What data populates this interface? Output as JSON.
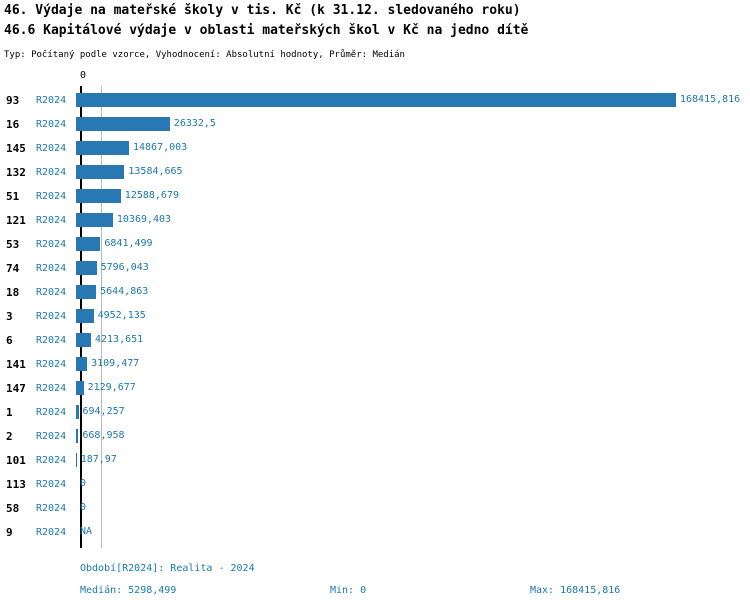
{
  "header": {
    "title": "46. Výdaje na mateřské školy v tis. Kč (k 31.12. sledovaného roku)",
    "subtitle": "46.6 Kapitálové výdaje v oblasti mateřských škol v Kč na jedno dítě",
    "meta": "Typ: Počítaný podle vzorce, Vyhodnocení: Absolutní hodnoty, Průměr: Medián"
  },
  "chart_data": {
    "type": "bar",
    "orientation": "horizontal",
    "x_tick_zero": "0",
    "xlim": [
      0,
      168415.816
    ],
    "median_value": 5298.499,
    "categories": [
      "93",
      "16",
      "145",
      "132",
      "51",
      "121",
      "53",
      "74",
      "18",
      "3",
      "6",
      "141",
      "147",
      "1",
      "2",
      "101",
      "113",
      "58",
      "9"
    ],
    "series_name": "R2024",
    "rows": [
      {
        "id": "93",
        "period": "R2024",
        "value": 168415.816,
        "label": "168415,816"
      },
      {
        "id": "16",
        "period": "R2024",
        "value": 26332.5,
        "label": "26332,5"
      },
      {
        "id": "145",
        "period": "R2024",
        "value": 14867.003,
        "label": "14867,003"
      },
      {
        "id": "132",
        "period": "R2024",
        "value": 13584.665,
        "label": "13584,665"
      },
      {
        "id": "51",
        "period": "R2024",
        "value": 12588.679,
        "label": "12588,679"
      },
      {
        "id": "121",
        "period": "R2024",
        "value": 10369.403,
        "label": "10369,403"
      },
      {
        "id": "53",
        "period": "R2024",
        "value": 6841.499,
        "label": "6841,499"
      },
      {
        "id": "74",
        "period": "R2024",
        "value": 5796.043,
        "label": "5796,043"
      },
      {
        "id": "18",
        "period": "R2024",
        "value": 5644.863,
        "label": "5644,863"
      },
      {
        "id": "3",
        "period": "R2024",
        "value": 4952.135,
        "label": "4952,135"
      },
      {
        "id": "6",
        "period": "R2024",
        "value": 4213.651,
        "label": "4213,651"
      },
      {
        "id": "141",
        "period": "R2024",
        "value": 3109.477,
        "label": "3109,477"
      },
      {
        "id": "147",
        "period": "R2024",
        "value": 2129.677,
        "label": "2129,677"
      },
      {
        "id": "1",
        "period": "R2024",
        "value": 694.257,
        "label": "694,257"
      },
      {
        "id": "2",
        "period": "R2024",
        "value": 668.958,
        "label": "668,958"
      },
      {
        "id": "101",
        "period": "R2024",
        "value": 187.97,
        "label": "187,97"
      },
      {
        "id": "113",
        "period": "R2024",
        "value": 0,
        "label": "0"
      },
      {
        "id": "58",
        "period": "R2024",
        "value": 0,
        "label": "0"
      },
      {
        "id": "9",
        "period": "R2024",
        "value": null,
        "label": "NA"
      }
    ],
    "colors": {
      "bar": "#2878b4",
      "accent_text": "#1b79ae",
      "axis": "#000000",
      "median_line": "#b8b8b8"
    }
  },
  "footer": {
    "period": "Období[R2024]: Realita - 2024",
    "median": "Medián: 5298,499",
    "min": "Min: 0",
    "max": "Max: 168415,816"
  }
}
